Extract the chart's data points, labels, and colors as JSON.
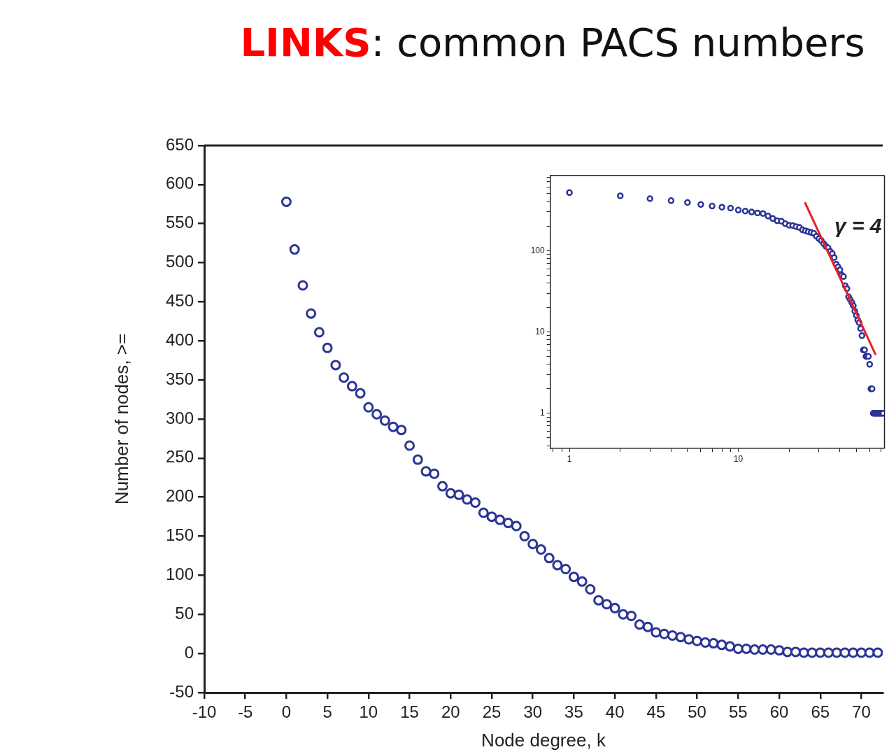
{
  "chart_data": [
    {
      "type": "scatter",
      "title": "LINKS: common PACS numbers",
      "xlabel": "Node degree, k",
      "ylabel": "Number of nodes, >=",
      "marker": "circle",
      "color": "#2b3595",
      "x": [
        0,
        1,
        2,
        3,
        4,
        5,
        6,
        7,
        8,
        9,
        10,
        11,
        12,
        13,
        14,
        15,
        16,
        17,
        18,
        19,
        20,
        21,
        22,
        23,
        24,
        25,
        26,
        27,
        28,
        29,
        30,
        31,
        32,
        33,
        34,
        35,
        36,
        37,
        38,
        39,
        40,
        41,
        42,
        43,
        44,
        45,
        46,
        47,
        48,
        49,
        50,
        51,
        52,
        53,
        54,
        55,
        56,
        57,
        58,
        59,
        60,
        61,
        62,
        63,
        64,
        65,
        66,
        67,
        68,
        69,
        70,
        71,
        72
      ],
      "values": [
        578,
        517,
        471,
        435,
        411,
        391,
        369,
        353,
        342,
        333,
        315,
        306,
        298,
        290,
        286,
        266,
        248,
        233,
        230,
        214,
        205,
        203,
        197,
        193,
        180,
        175,
        171,
        167,
        163,
        150,
        140,
        133,
        122,
        113,
        108,
        98,
        92,
        82,
        68,
        63,
        58,
        50,
        48,
        37,
        34,
        27,
        25,
        23,
        21,
        18,
        16,
        14,
        13,
        11,
        9,
        6,
        6,
        5,
        5,
        5,
        4,
        2,
        2,
        1,
        1,
        1,
        1,
        1,
        1,
        1,
        1,
        1,
        1
      ],
      "xlim": [
        -10,
        72.6
      ],
      "xticks": [
        -10,
        -5,
        0,
        5,
        10,
        15,
        20,
        25,
        30,
        35,
        40,
        45,
        50,
        55,
        60,
        65,
        70
      ],
      "ylim": [
        -50,
        650
      ],
      "yticks": [
        -50,
        0,
        50,
        100,
        150,
        200,
        250,
        300,
        350,
        400,
        450,
        500,
        550,
        600,
        650
      ]
    },
    {
      "type": "scatter",
      "log": "xy",
      "marker": "circle",
      "series": [
        {
          "color": "#2b3595",
          "x": [
            1,
            2,
            3,
            4,
            5,
            6,
            7,
            8,
            9,
            10,
            11,
            12,
            13,
            14,
            15,
            16,
            17,
            18,
            19,
            20,
            21,
            22,
            23,
            24,
            25,
            26,
            27,
            28,
            29,
            30,
            31,
            32,
            33,
            34,
            35,
            36,
            37,
            38,
            39,
            40,
            41,
            42,
            43,
            44,
            45,
            46,
            47,
            48,
            49,
            50,
            51,
            52,
            53,
            54,
            55,
            56,
            57,
            58,
            59,
            60,
            61,
            62,
            63,
            64,
            65,
            66,
            67,
            68,
            69,
            70,
            71,
            72
          ],
          "values": [
            517,
            471,
            435,
            411,
            391,
            369,
            353,
            342,
            333,
            315,
            306,
            298,
            290,
            286,
            266,
            248,
            233,
            230,
            214,
            205,
            203,
            197,
            193,
            180,
            175,
            171,
            167,
            163,
            150,
            140,
            133,
            122,
            113,
            108,
            98,
            92,
            82,
            68,
            63,
            58,
            50,
            48,
            37,
            34,
            27,
            25,
            23,
            21,
            18,
            16,
            14,
            13,
            11,
            9,
            6,
            6,
            5,
            5,
            5,
            4,
            2,
            2,
            1,
            1,
            1,
            1,
            1,
            1,
            1,
            1,
            1,
            1
          ]
        },
        {
          "type": "line",
          "color": "#e8202a",
          "marker": "none",
          "x": [
            24.8,
            65.1
          ],
          "values": [
            392,
            5.24
          ]
        }
      ],
      "annotations": [
        "γ = 4"
      ],
      "xlim": [
        0.77,
        73.4
      ],
      "xticks": [
        {
          "value": 0.8,
          "label": null
        },
        {
          "value": 0.9,
          "label": null
        },
        1,
        {
          "value": 2,
          "label": null
        },
        {
          "value": 3,
          "label": null
        },
        {
          "value": 4,
          "label": null
        },
        {
          "value": 5,
          "label": null
        },
        {
          "value": 6,
          "label": null
        },
        {
          "value": 7,
          "label": null
        },
        {
          "value": 8,
          "label": null
        },
        {
          "value": 9,
          "label": null
        },
        10,
        {
          "value": 20,
          "label": null
        },
        {
          "value": 30,
          "label": null
        },
        {
          "value": 40,
          "label": null
        },
        {
          "value": 50,
          "label": null
        },
        {
          "value": 60,
          "label": null
        },
        {
          "value": 70,
          "label": null
        }
      ],
      "ylim": [
        0.37,
        841
      ],
      "yticks": [
        {
          "value": 0.4,
          "label": null
        },
        {
          "value": 0.5,
          "label": null
        },
        {
          "value": 0.6,
          "label": null
        },
        {
          "value": 0.7,
          "label": null
        },
        {
          "value": 0.8,
          "label": null
        },
        {
          "value": 0.9,
          "label": null
        },
        1,
        {
          "value": 2,
          "label": null
        },
        {
          "value": 3,
          "label": null
        },
        {
          "value": 4,
          "label": null
        },
        {
          "value": 5,
          "label": null
        },
        {
          "value": 6,
          "label": null
        },
        {
          "value": 7,
          "label": null
        },
        {
          "value": 8,
          "label": null
        },
        {
          "value": 9,
          "label": null
        },
        10,
        {
          "value": 20,
          "label": null
        },
        {
          "value": 30,
          "label": null
        },
        {
          "value": 40,
          "label": null
        },
        {
          "value": 50,
          "label": null
        },
        {
          "value": 60,
          "label": null
        },
        {
          "value": 70,
          "label": null
        },
        {
          "value": 80,
          "label": null
        },
        {
          "value": 90,
          "label": null
        },
        100,
        {
          "value": 200,
          "label": null
        },
        {
          "value": 300,
          "label": null
        },
        {
          "value": 400,
          "label": null
        },
        {
          "value": 500,
          "label": null
        },
        {
          "value": 600,
          "label": null
        },
        {
          "value": 700,
          "label": null
        },
        {
          "value": 800,
          "label": null
        }
      ]
    }
  ]
}
